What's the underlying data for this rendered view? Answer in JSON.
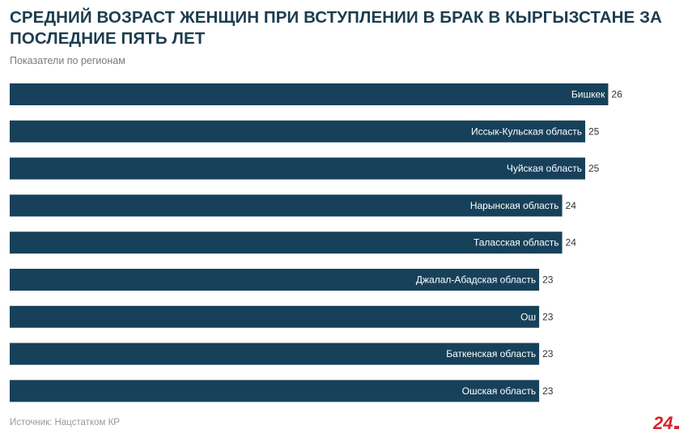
{
  "header": {
    "title": "Средний возраст женщин при вступлении в брак в Кыргызстане за последние пять лет",
    "subtitle": "Показатели по регионам"
  },
  "footer": {
    "source": "Источник: Нацстатком КР",
    "logo_text": "24"
  },
  "colors": {
    "bar": "#17415a",
    "title": "#1c3d4f",
    "logo": "#d9232d"
  },
  "chart_data": {
    "type": "bar",
    "orientation": "horizontal",
    "categories": [
      "Бишкек",
      "Иссык-Кульская область",
      "Чуйская область",
      "Нарынская область",
      "Таласская область",
      "Джалал-Абадская область",
      "Ош",
      "Баткенская область",
      "Ошская область"
    ],
    "values": [
      26,
      25,
      25,
      24,
      24,
      23,
      23,
      23,
      23
    ],
    "display_values": [
      "26",
      "25",
      "25",
      "24",
      "24",
      "23",
      "23",
      "23",
      "23"
    ],
    "xlim": [
      0,
      28.2
    ],
    "grid": false,
    "legend": "none"
  }
}
